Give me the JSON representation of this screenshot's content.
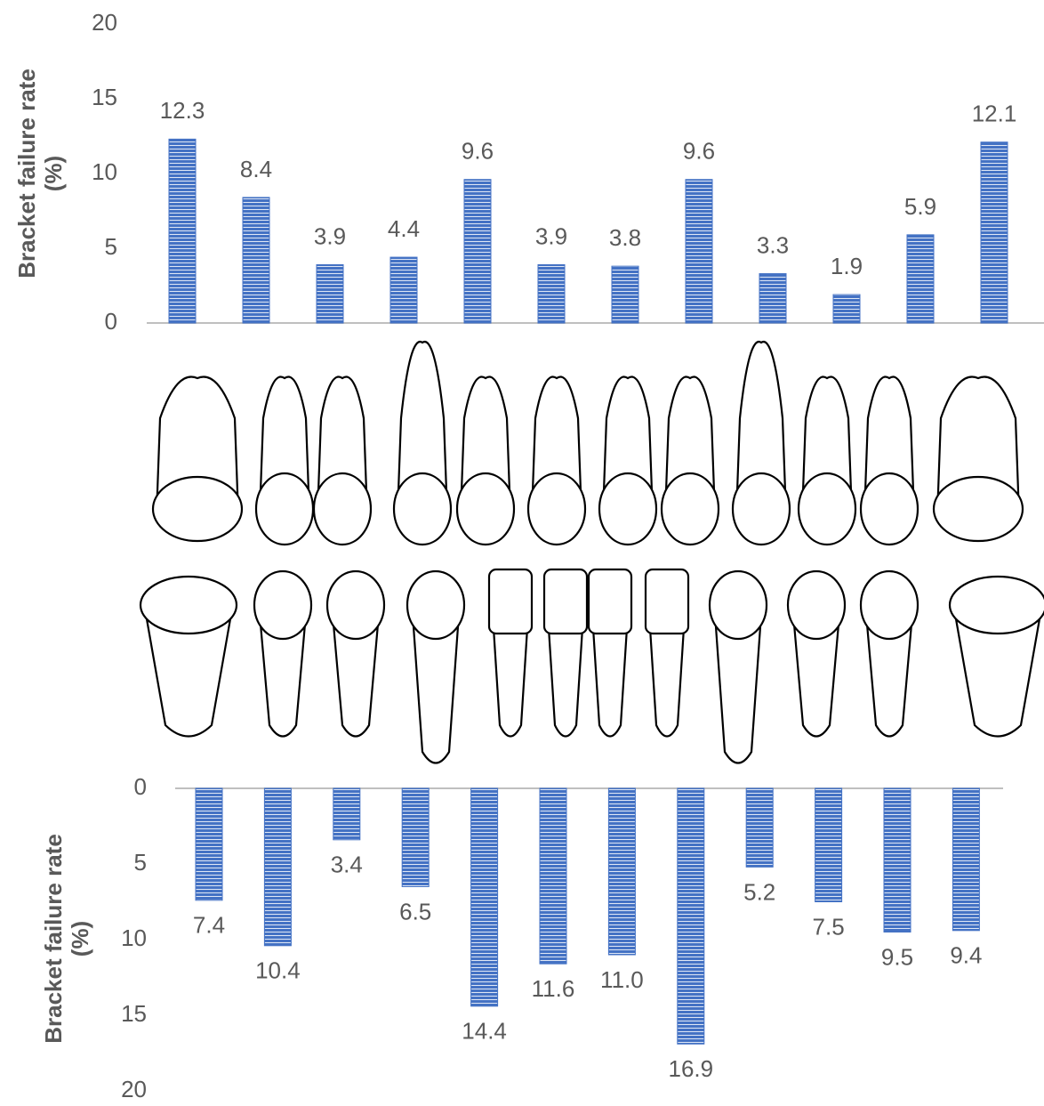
{
  "chart_data": [
    {
      "type": "bar",
      "y_label": "Bracket failure rate (%)",
      "categories": [
        null,
        null,
        null,
        null,
        null,
        null,
        null,
        null,
        null,
        null,
        null,
        null
      ],
      "values": [
        12.3,
        8.4,
        3.9,
        4.4,
        9.6,
        3.9,
        3.8,
        9.6,
        3.3,
        1.9,
        5.9,
        12.1
      ],
      "color": "#4472c4",
      "ylim": [
        0,
        20
      ],
      "yticks": [
        0,
        5,
        10,
        15,
        20
      ],
      "reverse_y": false
    },
    {
      "type": "bar",
      "y_label": "Bracket failure rate (%)",
      "categories": [
        null,
        null,
        null,
        null,
        null,
        null,
        null,
        null,
        null,
        null,
        null,
        null
      ],
      "values": [
        7.4,
        10.4,
        3.4,
        6.5,
        14.4,
        11.6,
        11.0,
        16.9,
        5.2,
        7.5,
        9.5,
        9.4
      ],
      "value_labels": [
        "7.4",
        "10.4",
        "3.4",
        "6.5",
        "14.4",
        "11.6",
        "11.0",
        "16.9",
        "5.2",
        "7.5",
        "9.5",
        "9.4"
      ],
      "color": "#4472c4",
      "ylim": [
        0,
        20
      ],
      "yticks": [
        0,
        5,
        10,
        15,
        20
      ],
      "reverse_y": true
    }
  ]
}
